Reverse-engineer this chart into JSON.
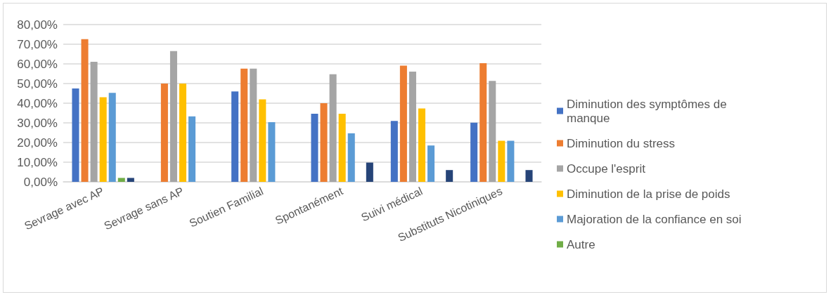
{
  "chart_data": {
    "type": "bar",
    "categories": [
      "Sevrage avec AP",
      "Sevrage sans AP",
      "Soutien Familial",
      "Spontanément",
      "Suivi médical",
      "Substituts Nicotiniques"
    ],
    "series": [
      {
        "name": "Diminution des symptômes de manque",
        "color": "#4472c4",
        "values": [
          47.5,
          0,
          46.0,
          34.6,
          31.0,
          30.1
        ]
      },
      {
        "name": "Diminution du stress",
        "color": "#ed7d31",
        "values": [
          72.6,
          50.0,
          57.6,
          40.0,
          59.1,
          60.4
        ]
      },
      {
        "name": "Occupe l'esprit",
        "color": "#a5a5a5",
        "values": [
          61.1,
          66.5,
          57.6,
          54.7,
          56.1,
          51.3
        ]
      },
      {
        "name": "Diminution de la prise de poids",
        "color": "#ffc000",
        "values": [
          43.0,
          50.0,
          42.0,
          34.6,
          37.3,
          20.9
        ]
      },
      {
        "name": "Majoration de la confiance en soi",
        "color": "#5b9bd5",
        "values": [
          45.3,
          33.3,
          30.4,
          24.7,
          18.5,
          20.9
        ]
      },
      {
        "name": "Autre",
        "color": "#70ad47",
        "values": [
          2.0,
          0,
          0,
          0,
          0,
          0
        ]
      },
      {
        "color": "#264478",
        "values": [
          2.0,
          0,
          0,
          9.8,
          6.0,
          6.0
        ]
      }
    ],
    "ylim": [
      0,
      80
    ],
    "yticks": [
      {
        "value": 0,
        "label": "0,00%"
      },
      {
        "value": 10,
        "label": "10,00%"
      },
      {
        "value": 20,
        "label": "20,00%"
      },
      {
        "value": 30,
        "label": "30,00%"
      },
      {
        "value": 40,
        "label": "40,00%"
      },
      {
        "value": 50,
        "label": "50,00%"
      },
      {
        "value": 60,
        "label": "60,00%"
      },
      {
        "value": 70,
        "label": "70,00%"
      },
      {
        "value": 80,
        "label": "80,00%"
      }
    ],
    "grid": "y",
    "legend": "right"
  }
}
